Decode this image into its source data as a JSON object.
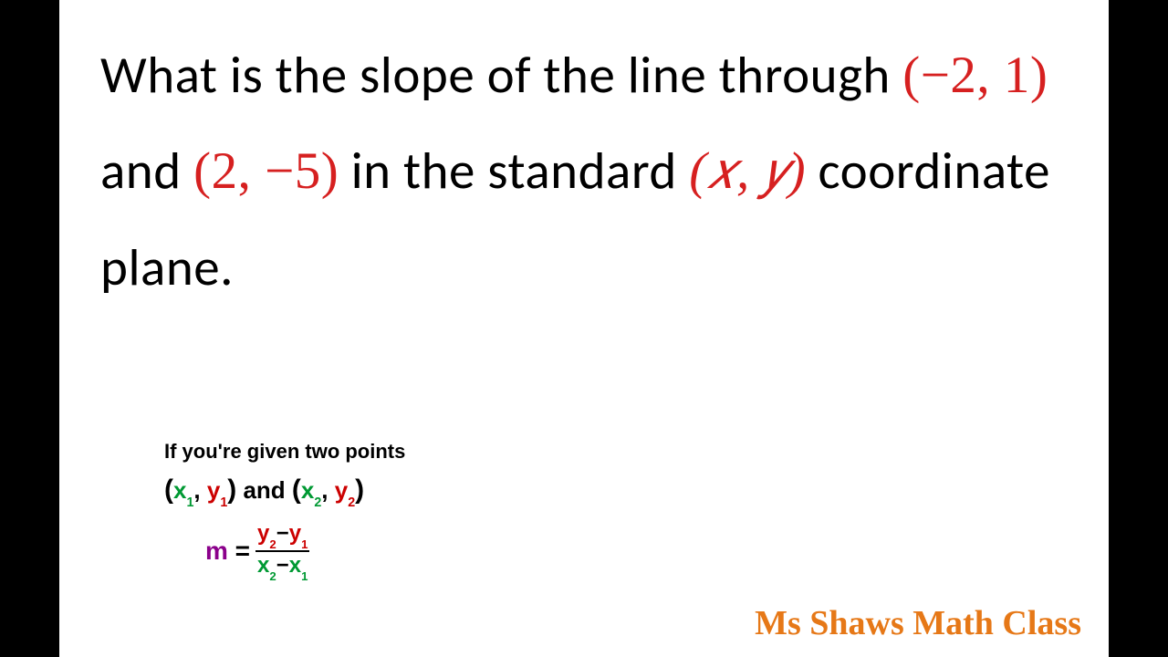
{
  "question": {
    "prefix1": "What is the slope of the line through ",
    "point1": "(−2, 1)",
    "mid1": " and ",
    "point2": "(2, −5)",
    "mid2": " in the standard ",
    "xy": "(𝑥, 𝑦)",
    "suffix": " coordinate plane.",
    "text_color": "#000000",
    "highlight_color": "#d62020",
    "fontsize": 57
  },
  "hint": {
    "line1": "If you're given two points",
    "and_text": " and ",
    "x1": "x",
    "y1": "y",
    "x2": "x",
    "y2": "y",
    "sub1": "1",
    "sub2": "2",
    "m_label": "m",
    "equals": " = ",
    "minus": "−",
    "fontsize": 22,
    "green": "#009933",
    "red": "#cc0000",
    "purple": "#8b008b"
  },
  "watermark": {
    "text": "Ms Shaws Math Class",
    "color": "#e67817",
    "fontsize": 38
  },
  "layout": {
    "slide_width": 1150,
    "slide_height": 720,
    "background": "#ffffff",
    "letterbox": "#000000"
  }
}
